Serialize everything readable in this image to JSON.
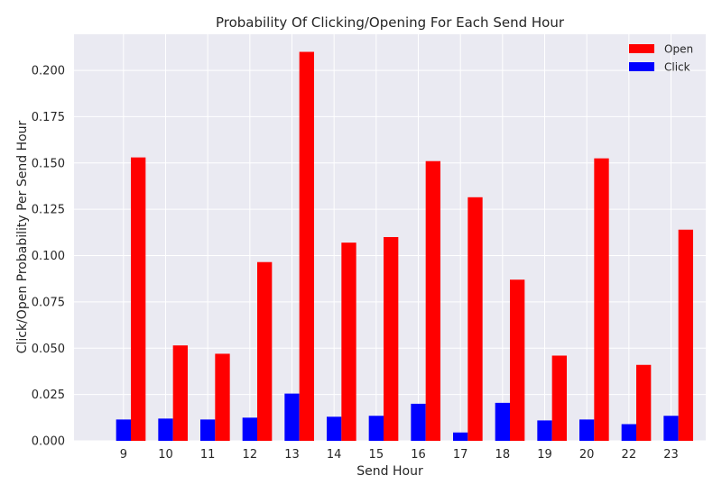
{
  "chart_data": {
    "type": "bar",
    "title": "Probability Of Clicking/Opening For Each Send Hour",
    "xlabel": "Send Hour",
    "ylabel": "Click/Open Probability Per Send Hour",
    "categories": [
      "9",
      "10",
      "11",
      "12",
      "13",
      "14",
      "15",
      "16",
      "17",
      "18",
      "19",
      "20",
      "22",
      "23"
    ],
    "series": [
      {
        "name": "Open",
        "color": "#ff0000",
        "values": [
          0.153,
          0.0515,
          0.047,
          0.0965,
          0.21,
          0.107,
          0.11,
          0.151,
          0.1315,
          0.087,
          0.046,
          0.1525,
          0.041,
          0.114
        ]
      },
      {
        "name": "Click",
        "color": "#0000ff",
        "values": [
          0.0115,
          0.012,
          0.0115,
          0.0125,
          0.0255,
          0.013,
          0.0135,
          0.02,
          0.0045,
          0.0205,
          0.011,
          0.0115,
          0.009,
          0.0135
        ]
      }
    ],
    "yticks": [
      "0.000",
      "0.025",
      "0.050",
      "0.075",
      "0.100",
      "0.125",
      "0.150",
      "0.175",
      "0.200"
    ],
    "ylim": [
      0,
      0.2195
    ],
    "grid": true,
    "legend": "top-right",
    "plot_background": "#eaeaf2"
  }
}
